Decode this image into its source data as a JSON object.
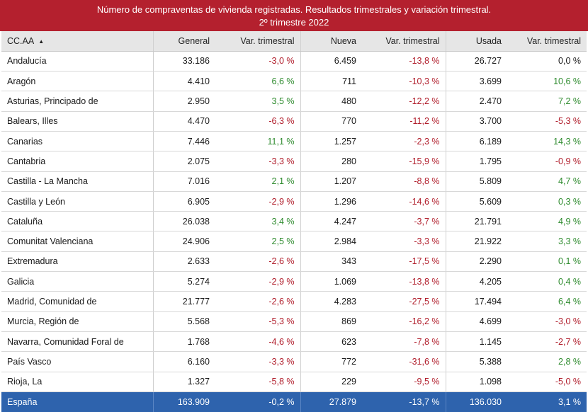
{
  "title": {
    "line1": "Número de compraventas de vivienda registradas. Resultados trimestrales  y variación trimestral.",
    "line2": "2º trimestre 2022"
  },
  "colors": {
    "title_bg": "#b4202e",
    "negative": "#b01c2a",
    "positive": "#2e8b2e",
    "total_bg": "#2e63ad"
  },
  "chart_data": {
    "type": "table",
    "columns": [
      "CC.AA",
      "General",
      "Var. trimestral",
      "Nueva",
      "Var. trimestral",
      "Usada",
      "Var. trimestral"
    ],
    "sort_icon": "▲",
    "rows": [
      [
        "Andalucía",
        "33.186",
        "-3,0 %",
        "6.459",
        "-13,8 %",
        "26.727",
        "0,0 %"
      ],
      [
        "Aragón",
        "4.410",
        "6,6 %",
        "711",
        "-10,3 %",
        "3.699",
        "10,6 %"
      ],
      [
        "Asturias, Principado de",
        "2.950",
        "3,5 %",
        "480",
        "-12,2 %",
        "2.470",
        "7,2 %"
      ],
      [
        "Balears, Illes",
        "4.470",
        "-6,3 %",
        "770",
        "-11,2 %",
        "3.700",
        "-5,3 %"
      ],
      [
        "Canarias",
        "7.446",
        "11,1 %",
        "1.257",
        "-2,3 %",
        "6.189",
        "14,3 %"
      ],
      [
        "Cantabria",
        "2.075",
        "-3,3 %",
        "280",
        "-15,9 %",
        "1.795",
        "-0,9 %"
      ],
      [
        "Castilla - La Mancha",
        "7.016",
        "2,1 %",
        "1.207",
        "-8,8 %",
        "5.809",
        "4,7 %"
      ],
      [
        "Castilla y León",
        "6.905",
        "-2,9 %",
        "1.296",
        "-14,6 %",
        "5.609",
        "0,3 %"
      ],
      [
        "Cataluña",
        "26.038",
        "3,4 %",
        "4.247",
        "-3,7 %",
        "21.791",
        "4,9 %"
      ],
      [
        "Comunitat Valenciana",
        "24.906",
        "2,5 %",
        "2.984",
        "-3,3 %",
        "21.922",
        "3,3 %"
      ],
      [
        "Extremadura",
        "2.633",
        "-2,6 %",
        "343",
        "-17,5 %",
        "2.290",
        "0,1 %"
      ],
      [
        "Galicia",
        "5.274",
        "-2,9 %",
        "1.069",
        "-13,8 %",
        "4.205",
        "0,4 %"
      ],
      [
        "Madrid, Comunidad de",
        "21.777",
        "-2,6 %",
        "4.283",
        "-27,5 %",
        "17.494",
        "6,4 %"
      ],
      [
        "Murcia, Región de",
        "5.568",
        "-5,3 %",
        "869",
        "-16,2 %",
        "4.699",
        "-3,0 %"
      ],
      [
        "Navarra, Comunidad Foral de",
        "1.768",
        "-4,6 %",
        "623",
        "-7,8 %",
        "1.145",
        "-2,7 %"
      ],
      [
        "País Vasco",
        "6.160",
        "-3,3 %",
        "772",
        "-31,6 %",
        "5.388",
        "2,8 %"
      ],
      [
        "Rioja, La",
        "1.327",
        "-5,8 %",
        "229",
        "-9,5 %",
        "1.098",
        "-5,0 %"
      ]
    ],
    "total": [
      "España",
      "163.909",
      "-0,2 %",
      "27.879",
      "-13,7 %",
      "136.030",
      "3,1 %"
    ]
  }
}
